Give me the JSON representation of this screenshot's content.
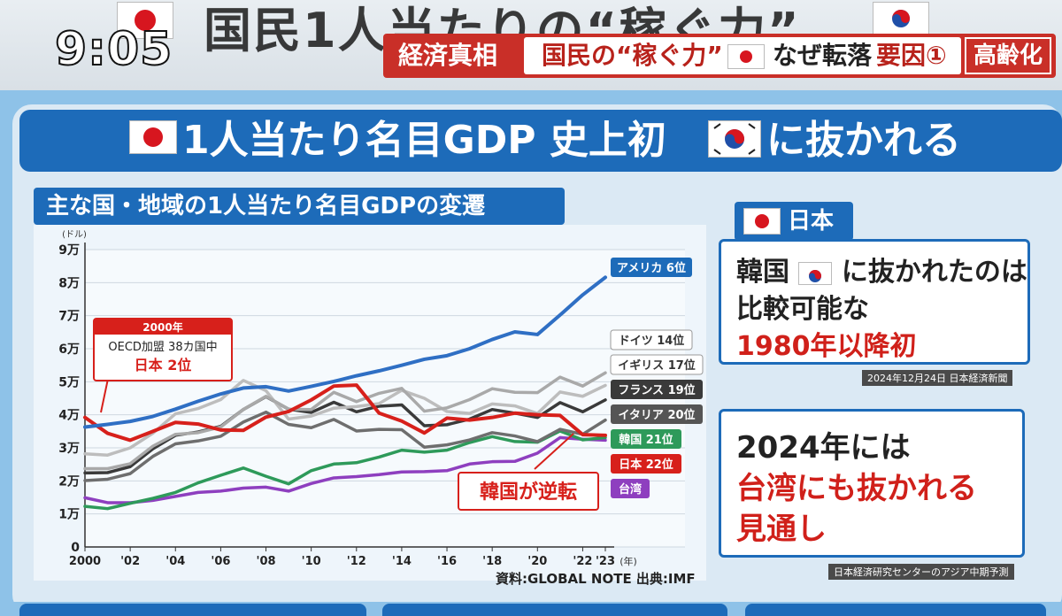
{
  "broadcast": {
    "clock": "9:05",
    "big_title": "国民1人当たりの“稼ぐ力”",
    "subtitle_tag": "経済真相",
    "subtitle_text_a": "国民の“稼ぐ力”",
    "subtitle_text_b": "なぜ転落",
    "subtitle_factor": "要因①",
    "subtitle_tag2": "高齢化"
  },
  "headline": {
    "part1": "1人当たり名目GDP 史上初",
    "part2": "に抜かれる"
  },
  "chart_header": "主な国・地域の1人当たり名目GDPの変遷",
  "callouts": {
    "y2000_title": "2000年",
    "y2000_line1": "OECD加盟 38カ国中",
    "y2000_line2": "日本 2位",
    "reversal": "韓国が逆転"
  },
  "source_note": "資料:GLOBAL NOTE 出典:IMF",
  "side_panel": {
    "tag": "日本",
    "box1_line1_a": "韓国",
    "box1_line1_b": "に抜かれたのは",
    "box1_line2": "比較可能な",
    "box1_line3": "1980年以降初",
    "date_note": "2024年12月24日 日本経済新聞",
    "box2_line1": "2024年には",
    "box2_line2": "台湾にも抜かれる",
    "box2_line3": "見通し",
    "forecast_note": "日本経済研究センターのアジア中期予測"
  },
  "colors": {
    "usa": "#2f6fc4",
    "germany": "#a9a9a9",
    "uk": "#bdbdbd",
    "france": "#3a3a3a",
    "italy": "#6e6e6e",
    "korea": "#2e9a5a",
    "japan": "#d7201b",
    "taiwan": "#8e3fbf"
  },
  "chart_data": {
    "type": "line",
    "title": "主な国・地域の1人当たり名目GDPの変遷",
    "y_unit": "(ドル)",
    "x_unit": "(年)",
    "ylim": [
      0,
      90000
    ],
    "y_ticks": [
      0,
      10000,
      20000,
      30000,
      40000,
      50000,
      60000,
      70000,
      80000,
      90000
    ],
    "y_tick_labels": [
      "0",
      "1万",
      "2万",
      "3万",
      "4万",
      "5万",
      "6万",
      "7万",
      "8万",
      "9万"
    ],
    "x_ticks": [
      2000,
      2002,
      2004,
      2006,
      2008,
      2010,
      2012,
      2014,
      2016,
      2018,
      2020,
      2022,
      2023
    ],
    "x_tick_labels": [
      "2000",
      "'02",
      "'04",
      "'06",
      "'08",
      "'10",
      "'12",
      "'14",
      "'16",
      "'18",
      "'20",
      "'22",
      "'23"
    ],
    "x": [
      2000,
      2001,
      2002,
      2003,
      2004,
      2005,
      2006,
      2007,
      2008,
      2009,
      2010,
      2011,
      2012,
      2013,
      2014,
      2015,
      2016,
      2017,
      2018,
      2019,
      2020,
      2021,
      2022,
      2023
    ],
    "series": [
      {
        "key": "usa",
        "label": "アメリカ 6位",
        "values": [
          36300,
          37100,
          38000,
          39500,
          41700,
          44100,
          46300,
          48100,
          48500,
          47200,
          48600,
          50100,
          51800,
          53300,
          55000,
          56800,
          57900,
          60000,
          62800,
          65100,
          64300,
          70200,
          76300,
          81600
        ]
      },
      {
        "key": "germany",
        "label": "ドイツ 14位",
        "values": [
          23700,
          23700,
          25200,
          30500,
          34100,
          34600,
          36300,
          41600,
          45600,
          41700,
          41600,
          46800,
          44000,
          46500,
          48000,
          41100,
          42100,
          44600,
          47900,
          46800,
          46700,
          51400,
          48700,
          52700
        ]
      },
      {
        "key": "uk",
        "label": "イギリス 17位",
        "values": [
          28200,
          27800,
          30000,
          34400,
          40300,
          41900,
          44600,
          50400,
          47300,
          38700,
          39600,
          42000,
          42500,
          43400,
          47400,
          45000,
          41000,
          40400,
          43300,
          42700,
          40400,
          46900,
          45600,
          48900
        ]
      },
      {
        "key": "france",
        "label": "フランス 19位",
        "values": [
          22400,
          22500,
          24300,
          29700,
          33800,
          34800,
          36500,
          41600,
          45500,
          41700,
          40700,
          43800,
          40900,
          42600,
          43000,
          36700,
          37000,
          38700,
          41600,
          40500,
          39200,
          43700,
          40900,
          44500
        ]
      },
      {
        "key": "italy",
        "label": "イタリア 20位",
        "values": [
          20100,
          20500,
          22200,
          27400,
          31200,
          32100,
          33500,
          37800,
          40800,
          37100,
          36100,
          38600,
          35100,
          35600,
          35500,
          30200,
          30900,
          32400,
          34600,
          33600,
          31900,
          35600,
          34100,
          38400
        ]
      },
      {
        "key": "korea",
        "label": "韓国 21位",
        "values": [
          12300,
          11600,
          13200,
          14700,
          16500,
          19400,
          21700,
          23900,
          21400,
          19100,
          23100,
          25100,
          25500,
          27200,
          29300,
          28700,
          29300,
          31600,
          33400,
          31900,
          31700,
          35100,
          32400,
          33100
        ]
      },
      {
        "key": "japan",
        "label": "日本 22位",
        "values": [
          39200,
          34400,
          32300,
          35000,
          37700,
          37200,
          35400,
          35300,
          39300,
          41000,
          44500,
          48700,
          49000,
          40500,
          38100,
          34500,
          39000,
          38400,
          39200,
          40500,
          40000,
          39800,
          34000,
          33800
        ]
      },
      {
        "key": "taiwan",
        "label": "台湾",
        "values": [
          14900,
          13400,
          13400,
          14100,
          15300,
          16500,
          16900,
          17800,
          18100,
          16900,
          19200,
          20900,
          21300,
          21900,
          22700,
          22800,
          23100,
          25100,
          25800,
          25900,
          28400,
          33100,
          32600,
          32300
        ]
      }
    ],
    "legend_placement": "right of plot, labels at line ends",
    "grid": "horizontal"
  }
}
